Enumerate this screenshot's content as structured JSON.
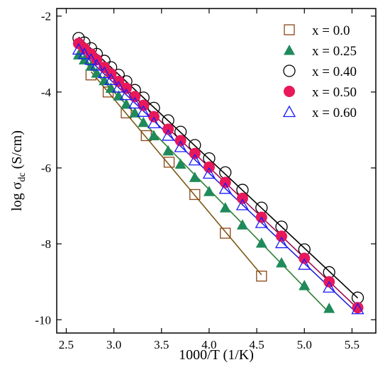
{
  "chart_data": {
    "type": "scatter",
    "xlabel": "1000/T  (1/K)",
    "ylabel_main": "log σ",
    "ylabel_sub": "dc",
    "ylabel_unit": " (S/cm)",
    "xlim": [
      2.4,
      5.75
    ],
    "ylim": [
      -10.35,
      -1.8
    ],
    "xticks": [
      2.5,
      3.0,
      3.5,
      4.0,
      4.5,
      5.0,
      5.5
    ],
    "xtick_labels": [
      "2.5",
      "3.0",
      "3.5",
      "4.0",
      "4.5",
      "5.0",
      "5.5"
    ],
    "yticks": [
      -10,
      -8,
      -6,
      -4,
      -2
    ],
    "ytick_labels": [
      "-10",
      "-8",
      "-6",
      "-4",
      "-2"
    ],
    "grid": false,
    "legend_position": "top-right",
    "series": [
      {
        "name": "x = 0.0",
        "marker": "square-open",
        "color": "#8B4513",
        "line_color": "#7a5a14",
        "x": [
          2.76,
          2.94,
          3.13,
          3.34,
          3.58,
          3.85,
          4.17,
          4.55
        ],
        "y": [
          -3.55,
          -4.0,
          -4.55,
          -5.15,
          -5.85,
          -6.7,
          -7.72,
          -8.85
        ]
      },
      {
        "name": "x = 0.25",
        "marker": "triangle-filled",
        "color": "#1f8a5a",
        "line_color": "#2e7d32",
        "x": [
          2.63,
          2.69,
          2.76,
          2.82,
          2.9,
          2.97,
          3.05,
          3.13,
          3.22,
          3.31,
          3.42,
          3.57,
          3.7,
          3.85,
          4.0,
          4.17,
          4.35,
          4.55,
          4.76,
          5.0,
          5.26
        ],
        "y": [
          -3.02,
          -3.15,
          -3.32,
          -3.5,
          -3.7,
          -3.9,
          -4.1,
          -4.32,
          -4.55,
          -4.8,
          -5.15,
          -5.55,
          -5.9,
          -6.25,
          -6.62,
          -7.05,
          -7.5,
          -7.98,
          -8.5,
          -9.1,
          -9.7
        ]
      },
      {
        "name": "x = 0.40",
        "marker": "circle-open",
        "color": "#000000",
        "line_color": "#000000",
        "x": [
          2.63,
          2.69,
          2.76,
          2.82,
          2.9,
          2.97,
          3.05,
          3.13,
          3.22,
          3.31,
          3.42,
          3.57,
          3.7,
          3.85,
          4.0,
          4.17,
          4.35,
          4.55,
          4.76,
          5.0,
          5.26,
          5.56
        ],
        "y": [
          -2.58,
          -2.7,
          -2.85,
          -3.0,
          -3.18,
          -3.35,
          -3.55,
          -3.72,
          -3.95,
          -4.15,
          -4.42,
          -4.75,
          -5.05,
          -5.4,
          -5.75,
          -6.12,
          -6.58,
          -7.05,
          -7.55,
          -8.15,
          -8.75,
          -9.42
        ]
      },
      {
        "name": "x = 0.50",
        "marker": "circle-filled",
        "color": "#e8185a",
        "line_color": "#a01050",
        "x": [
          2.63,
          2.69,
          2.76,
          2.82,
          2.9,
          2.97,
          3.05,
          3.13,
          3.22,
          3.31,
          3.42,
          3.57,
          3.7,
          3.85,
          4.0,
          4.17,
          4.35,
          4.55,
          4.76,
          5.0,
          5.26,
          5.56
        ],
        "y": [
          -2.72,
          -2.85,
          -3.0,
          -3.15,
          -3.35,
          -3.52,
          -3.72,
          -3.9,
          -4.12,
          -4.35,
          -4.65,
          -4.98,
          -5.28,
          -5.62,
          -5.98,
          -6.38,
          -6.8,
          -7.3,
          -7.8,
          -8.38,
          -9.0,
          -9.68
        ]
      },
      {
        "name": "x = 0.60",
        "marker": "triangle-open",
        "color": "#1a1aff",
        "line_color": "#2222dd",
        "x": [
          2.63,
          2.69,
          2.76,
          2.82,
          2.9,
          2.97,
          3.05,
          3.13,
          3.22,
          3.31,
          3.42,
          3.57,
          3.7,
          3.85,
          4.0,
          4.17,
          4.35,
          4.55,
          4.76,
          5.0,
          5.26,
          5.56
        ],
        "y": [
          -2.88,
          -3.0,
          -3.15,
          -3.3,
          -3.5,
          -3.68,
          -3.88,
          -4.08,
          -4.3,
          -4.52,
          -4.82,
          -5.15,
          -5.45,
          -5.8,
          -6.15,
          -6.55,
          -6.98,
          -7.45,
          -7.98,
          -8.55,
          -9.15,
          -9.72
        ]
      }
    ]
  }
}
